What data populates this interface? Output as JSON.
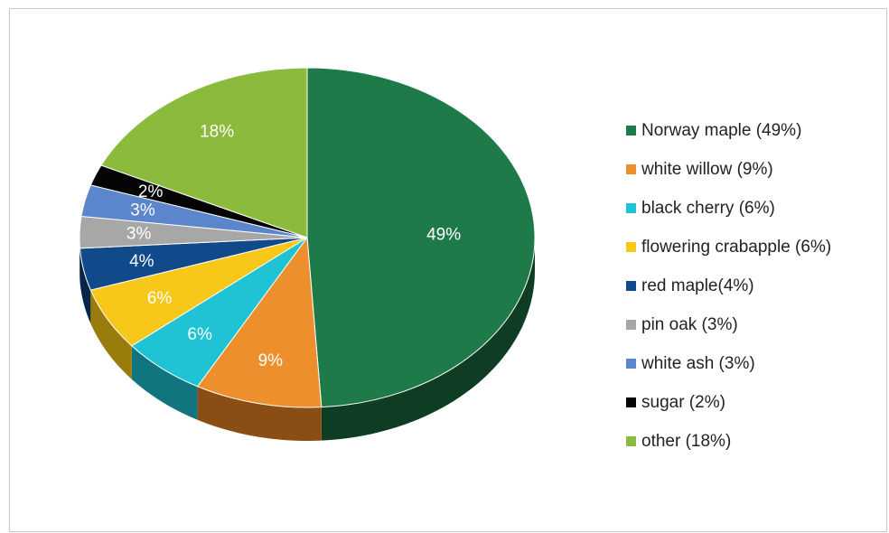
{
  "chart_data": {
    "type": "pie",
    "title": "",
    "slices": [
      {
        "label": "Norway maple (49%)",
        "value": 49,
        "data_label": "49%",
        "color": "#1f7a4a",
        "side_color": "#0f3d24"
      },
      {
        "label": "white willow (9%)",
        "value": 9,
        "data_label": "9%",
        "color": "#ee8f2e",
        "side_color": "#8a4e15"
      },
      {
        "label": "black cherry (6%)",
        "value": 6,
        "data_label": "6%",
        "color": "#1fc3d3",
        "side_color": "#117580"
      },
      {
        "label": "flowering crabapple (6%)",
        "value": 6,
        "data_label": "6%",
        "color": "#f7c81a",
        "side_color": "#9a7c0c"
      },
      {
        "label": "red maple(4%)",
        "value": 4,
        "data_label": "4%",
        "color": "#114a8a",
        "side_color": "#082647"
      },
      {
        "label": "pin oak (3%)",
        "value": 3,
        "data_label": "3%",
        "color": "#a7a7a7",
        "side_color": "#666666"
      },
      {
        "label": "white ash (3%)",
        "value": 3,
        "data_label": "3%",
        "color": "#5b86cc",
        "side_color": "#34507c"
      },
      {
        "label": "sugar (2%)",
        "value": 2,
        "data_label": "2%",
        "color": "#050505",
        "side_color": "#000000"
      },
      {
        "label": "other (18%)",
        "value": 18,
        "data_label": "18%",
        "color": "#8cba3c",
        "side_color": "#52701f"
      }
    ],
    "legend_position": "right",
    "style": "3d-pie"
  }
}
